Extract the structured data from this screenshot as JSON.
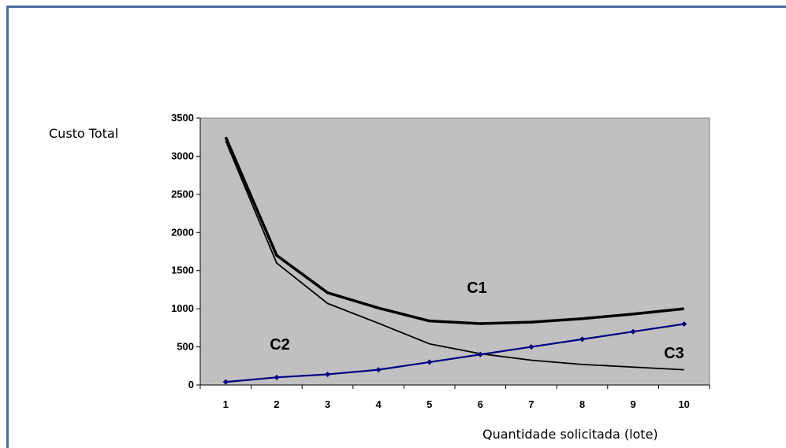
{
  "chart_data": {
    "type": "line",
    "title": "",
    "ylabel": "Custo Total",
    "xlabel": "Quantidade solicitada (lote)",
    "categories": [
      "1",
      "2",
      "3",
      "4",
      "5",
      "6",
      "7",
      "8",
      "9",
      "10"
    ],
    "ylim": [
      0,
      3500
    ],
    "yticks": [
      "0",
      "500",
      "1000",
      "1500",
      "2000",
      "2500",
      "3000",
      "3500"
    ],
    "series": [
      {
        "name": "C1",
        "values": [
          3250,
          1700,
          1210,
          1010,
          840,
          805,
          825,
          870,
          930,
          1000
        ]
      },
      {
        "name": "C2",
        "values": [
          3200,
          1600,
          1070,
          810,
          540,
          410,
          325,
          270,
          235,
          200
        ]
      },
      {
        "name": "C3",
        "values": [
          40,
          100,
          140,
          200,
          300,
          400,
          500,
          600,
          700,
          800
        ]
      }
    ],
    "annotations": [
      "C1",
      "C2",
      "C3"
    ],
    "plot_background": "#c0c0c0",
    "colors": {
      "C1": "#000000",
      "C2": "#000000",
      "C3": "#000080"
    },
    "grid": false,
    "legend": "none"
  }
}
